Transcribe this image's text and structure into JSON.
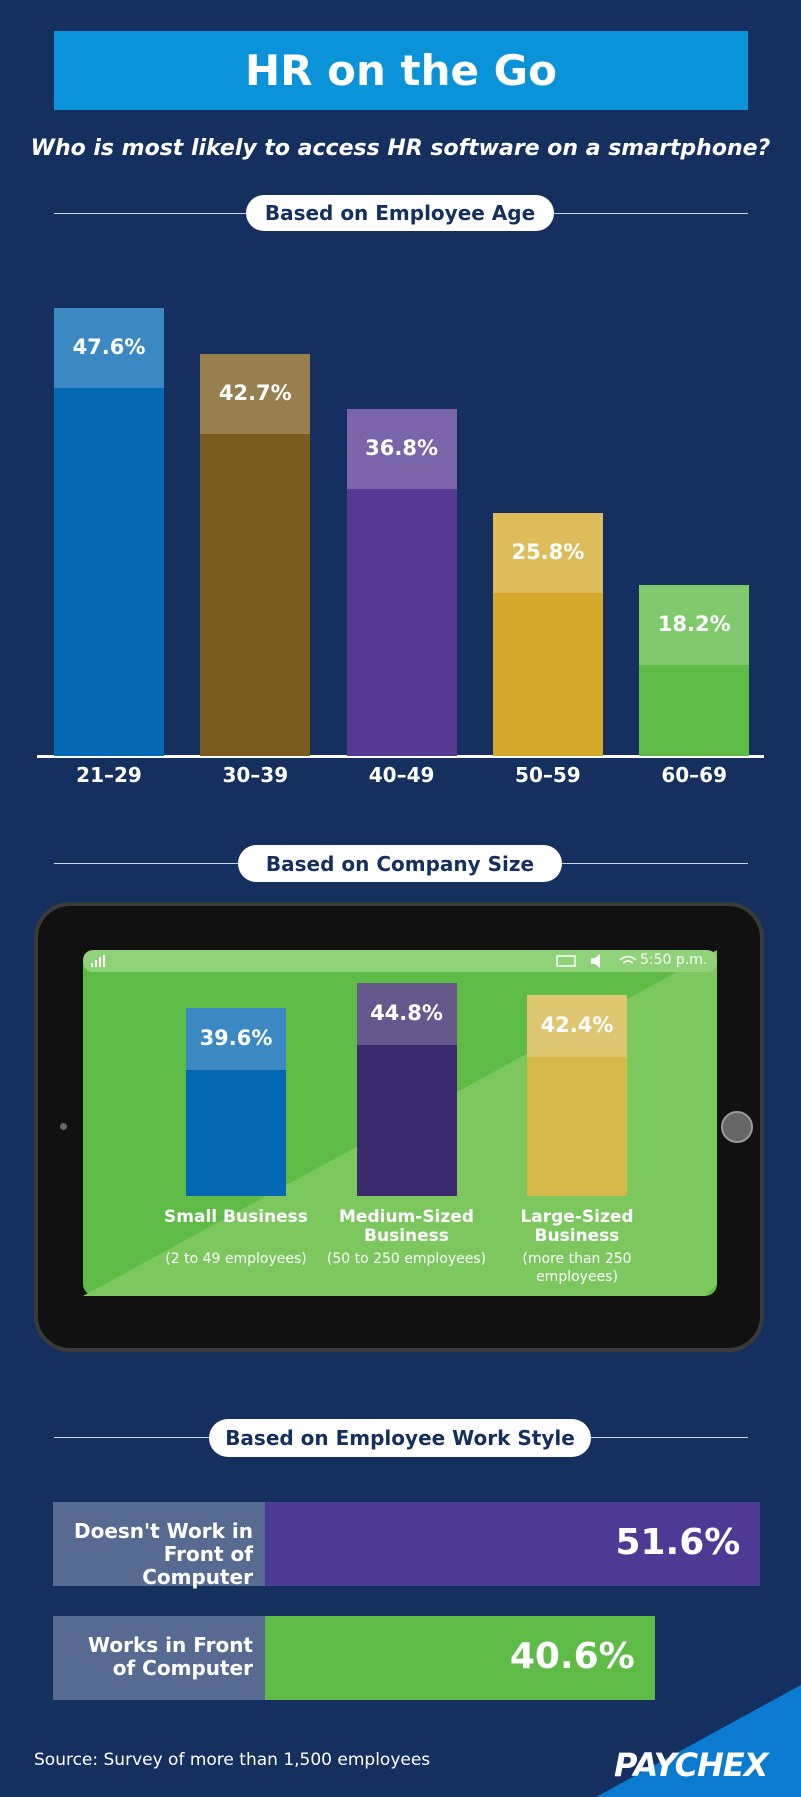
{
  "header": {
    "title": "HR on the Go",
    "subtitle": "Who is most likely to access HR software on a smartphone?"
  },
  "chart_data": [
    {
      "type": "bar",
      "title": "Based on Employee Age",
      "categories": [
        "21–29",
        "30–39",
        "40–49",
        "50–59",
        "60–69"
      ],
      "values": [
        47.6,
        42.7,
        36.8,
        25.8,
        18.2
      ],
      "value_labels": [
        "47.6%",
        "42.7%",
        "36.8%",
        "25.8%",
        "18.2%"
      ],
      "colors": [
        "#0468b3",
        "#7a5c1e",
        "#553a94",
        "#d4a92b",
        "#5dbb46"
      ]
    },
    {
      "type": "bar",
      "title": "Based on Company Size",
      "categories": [
        "Small Business",
        "Medium-Sized Business",
        "Large-Sized Business"
      ],
      "category_notes": [
        "(2 to 49 employees)",
        "(50 to 250 employees)",
        "(more than 250 employees)"
      ],
      "values": [
        39.6,
        44.8,
        42.4
      ],
      "value_labels": [
        "39.6%",
        "44.8%",
        "42.4%"
      ],
      "colors": [
        "#0468b3",
        "#3b2a6e",
        "#d6b84a"
      ],
      "status_time": "5:50 p.m."
    },
    {
      "type": "hbar",
      "title": "Based on Employee Work Style",
      "categories": [
        "Doesn't Work in Front of Computer",
        "Works in Front of Computer"
      ],
      "values": [
        51.6,
        40.6
      ],
      "value_labels": [
        "51.6%",
        "40.6%"
      ],
      "colors": [
        "#4e3a94",
        "#5dbb46"
      ]
    }
  ],
  "source": "Source: Survey of more than 1,500 employees",
  "brand": "PAYCHEX"
}
